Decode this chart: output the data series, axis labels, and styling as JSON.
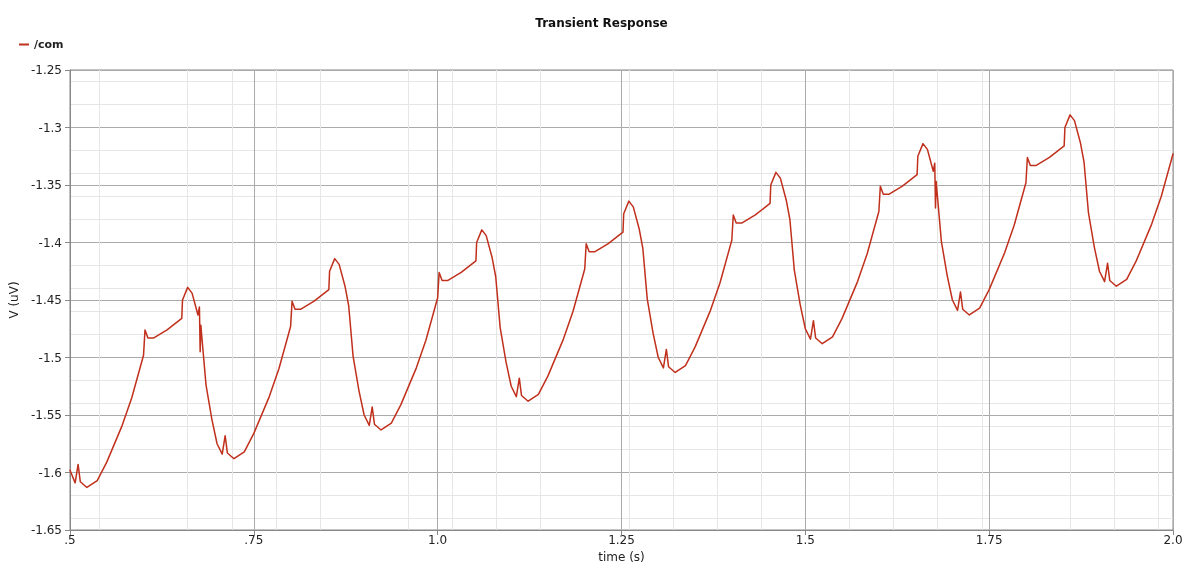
{
  "chart_data": {
    "type": "line",
    "title": "Transient Response",
    "xlabel": "time (s)",
    "ylabel": "V (uV)",
    "xlim": [
      0.5,
      2.0
    ],
    "xticks": [
      {
        "value": 0.5,
        "label": ".5"
      },
      {
        "value": 0.75,
        "label": ".75"
      },
      {
        "value": 1.0,
        "label": "1.0"
      },
      1.25,
      1.5,
      1.75,
      {
        "value": 2.0,
        "label": "2.0"
      }
    ],
    "ylim": [
      -1.65,
      -1.25
    ],
    "yticks": [
      -1.65,
      -1.6,
      -1.55,
      -1.5,
      -1.45,
      -1.4,
      -1.35,
      -1.3,
      -1.25
    ],
    "grid": true,
    "legend": "top left",
    "marker": "none",
    "line_style": "solid",
    "series": [
      {
        "name": "/com",
        "color": "#c0301c",
        "x": [
          0.5,
          0.507,
          0.511,
          0.514,
          0.523,
          0.537,
          0.55,
          0.571,
          0.584,
          0.6,
          0.602,
          0.606,
          0.614,
          0.632,
          0.652,
          0.653,
          0.66,
          0.666,
          0.674,
          0.676,
          0.677,
          0.678,
          0.679,
          0.685,
          0.693,
          0.7,
          0.707,
          0.711,
          0.714,
          0.723,
          0.737,
          0.75,
          0.771,
          0.784,
          0.8,
          0.802,
          0.806,
          0.814,
          0.832,
          0.852,
          0.853,
          0.86,
          0.866,
          0.874,
          0.879,
          0.885,
          0.893,
          0.9,
          0.907,
          0.911,
          0.914,
          0.923,
          0.937,
          0.95,
          0.971,
          0.984,
          1.0,
          1.002,
          1.006,
          1.014,
          1.032,
          1.052,
          1.053,
          1.06,
          1.066,
          1.074,
          1.079,
          1.085,
          1.093,
          1.1,
          1.107,
          1.111,
          1.114,
          1.123,
          1.137,
          1.15,
          1.171,
          1.184,
          1.2,
          1.202,
          1.206,
          1.214,
          1.232,
          1.252,
          1.253,
          1.26,
          1.266,
          1.274,
          1.279,
          1.285,
          1.293,
          1.3,
          1.307,
          1.311,
          1.314,
          1.323,
          1.337,
          1.35,
          1.371,
          1.384,
          1.4,
          1.402,
          1.406,
          1.414,
          1.432,
          1.452,
          1.453,
          1.46,
          1.466,
          1.474,
          1.479,
          1.485,
          1.493,
          1.5,
          1.507,
          1.511,
          1.514,
          1.523,
          1.537,
          1.55,
          1.571,
          1.584,
          1.6,
          1.602,
          1.606,
          1.614,
          1.632,
          1.652,
          1.653,
          1.66,
          1.666,
          1.674,
          1.676,
          1.677,
          1.678,
          1.679,
          1.685,
          1.693,
          1.7,
          1.707,
          1.711,
          1.714,
          1.723,
          1.737,
          1.75,
          1.771,
          1.784,
          1.8,
          1.802,
          1.806,
          1.814,
          1.832,
          1.852,
          1.853,
          1.86,
          1.866,
          1.874,
          1.879,
          1.885,
          1.893,
          1.9,
          1.907,
          1.911,
          1.914,
          1.923,
          1.937,
          1.95,
          1.971,
          1.984,
          2.0
        ],
        "values": [
          -1.598,
          -1.609,
          -1.593,
          -1.608,
          -1.613,
          -1.607,
          -1.591,
          -1.559,
          -1.535,
          -1.498,
          -1.476,
          -1.483,
          -1.483,
          -1.476,
          -1.466,
          -1.45,
          -1.439,
          -1.444,
          -1.463,
          -1.456,
          -1.495,
          -1.472,
          -1.48,
          -1.524,
          -1.554,
          -1.575,
          -1.584,
          -1.568,
          -1.583,
          -1.588,
          -1.582,
          -1.566,
          -1.534,
          -1.51,
          -1.473,
          -1.451,
          -1.458,
          -1.458,
          -1.451,
          -1.441,
          -1.425,
          -1.414,
          -1.419,
          -1.438,
          -1.455,
          -1.499,
          -1.529,
          -1.55,
          -1.559,
          -1.543,
          -1.558,
          -1.563,
          -1.557,
          -1.541,
          -1.509,
          -1.485,
          -1.448,
          -1.426,
          -1.433,
          -1.433,
          -1.426,
          -1.416,
          -1.4,
          -1.389,
          -1.394,
          -1.413,
          -1.43,
          -1.474,
          -1.504,
          -1.525,
          -1.534,
          -1.518,
          -1.533,
          -1.538,
          -1.532,
          -1.516,
          -1.484,
          -1.46,
          -1.423,
          -1.401,
          -1.408,
          -1.408,
          -1.401,
          -1.391,
          -1.375,
          -1.364,
          -1.369,
          -1.388,
          -1.405,
          -1.449,
          -1.479,
          -1.5,
          -1.509,
          -1.493,
          -1.508,
          -1.513,
          -1.507,
          -1.491,
          -1.459,
          -1.435,
          -1.398,
          -1.376,
          -1.383,
          -1.383,
          -1.376,
          -1.366,
          -1.35,
          -1.339,
          -1.344,
          -1.363,
          -1.38,
          -1.424,
          -1.454,
          -1.475,
          -1.484,
          -1.468,
          -1.483,
          -1.488,
          -1.482,
          -1.466,
          -1.434,
          -1.41,
          -1.373,
          -1.351,
          -1.358,
          -1.358,
          -1.351,
          -1.341,
          -1.325,
          -1.314,
          -1.319,
          -1.338,
          -1.331,
          -1.37,
          -1.347,
          -1.355,
          -1.399,
          -1.429,
          -1.45,
          -1.459,
          -1.443,
          -1.458,
          -1.463,
          -1.457,
          -1.441,
          -1.409,
          -1.385,
          -1.348,
          -1.326,
          -1.333,
          -1.333,
          -1.326,
          -1.316,
          -1.3,
          -1.289,
          -1.294,
          -1.313,
          -1.33,
          -1.374,
          -1.404,
          -1.425,
          -1.434,
          -1.418,
          -1.433,
          -1.438,
          -1.432,
          -1.416,
          -1.384,
          -1.36,
          -1.323
        ]
      }
    ]
  }
}
